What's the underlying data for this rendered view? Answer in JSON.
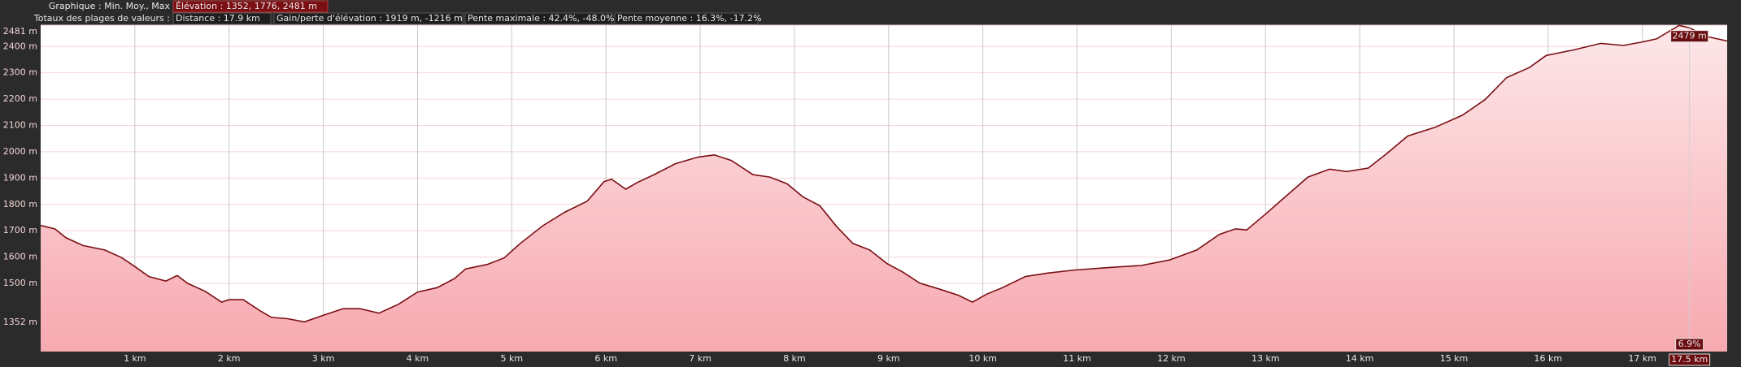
{
  "chart_data": {
    "type": "area",
    "header": {
      "chart_label": "Graphique : Min. Moy., Max",
      "elevation": "Élévation : 1352, 1776, 2481 m",
      "totals_label": "Totaux des plages de valeurs :",
      "distance": "Distance : 17.9 km",
      "gain_loss": "Gain/perte d'élévation : 1919 m, -1216 m",
      "max_slope": "Pente maximale : 42.4%, -48.0%",
      "avg_slope": "Pente moyenne : 16.3%, -17.2%"
    },
    "x": [
      0,
      0.15,
      0.27,
      0.45,
      0.68,
      0.86,
      1.0,
      1.15,
      1.33,
      1.45,
      1.56,
      1.74,
      1.92,
      2.0,
      2.15,
      2.33,
      2.45,
      2.62,
      2.8,
      3.0,
      3.21,
      3.39,
      3.59,
      3.8,
      4.0,
      4.21,
      4.39,
      4.51,
      4.74,
      4.92,
      5.09,
      5.33,
      5.56,
      5.8,
      5.98,
      6.06,
      6.21,
      6.33,
      6.51,
      6.74,
      6.98,
      7.15,
      7.33,
      7.56,
      7.74,
      7.92,
      8.09,
      8.27,
      8.45,
      8.62,
      8.8,
      8.98,
      9.15,
      9.33,
      9.56,
      9.74,
      9.89,
      10.04,
      10.21,
      10.45,
      10.68,
      10.98,
      11.33,
      11.68,
      11.98,
      12.27,
      12.51,
      12.68,
      12.8,
      12.98,
      13.21,
      13.45,
      13.68,
      13.86,
      14.09,
      14.27,
      14.51,
      14.8,
      15.09,
      15.33,
      15.56,
      15.8,
      15.98,
      16.27,
      16.56,
      16.8,
      16.98,
      17.15,
      17.39,
      17.5,
      17.68,
      17.9
    ],
    "values": [
      1720,
      1707,
      1673,
      1644,
      1627,
      1598,
      1564,
      1526,
      1509,
      1530,
      1500,
      1471,
      1429,
      1438,
      1438,
      1396,
      1371,
      1366,
      1354,
      1379,
      1404,
      1404,
      1387,
      1421,
      1467,
      1484,
      1518,
      1555,
      1572,
      1597,
      1652,
      1719,
      1770,
      1812,
      1887,
      1896,
      1858,
      1883,
      1913,
      1955,
      1980,
      1988,
      1967,
      1913,
      1904,
      1879,
      1829,
      1795,
      1715,
      1652,
      1627,
      1576,
      1543,
      1501,
      1476,
      1455,
      1429,
      1459,
      1484,
      1526,
      1539,
      1551,
      1560,
      1568,
      1589,
      1627,
      1686,
      1707,
      1703,
      1757,
      1829,
      1904,
      1934,
      1925,
      1938,
      1988,
      2060,
      2093,
      2139,
      2198,
      2282,
      2320,
      2366,
      2387,
      2412,
      2404,
      2416,
      2429,
      2480,
      2471,
      2438,
      2421
    ],
    "color": "#7a0f14",
    "fill_color": "#f7a9b0",
    "xlim": [
      0,
      17.9
    ],
    "ylim": [
      1241,
      2481
    ],
    "xticks": [
      {
        "value": 1,
        "label": "1 km"
      },
      {
        "value": 2,
        "label": "2 km"
      },
      {
        "value": 3,
        "label": "3 km"
      },
      {
        "value": 4,
        "label": "4 km"
      },
      {
        "value": 5,
        "label": "5 km"
      },
      {
        "value": 6,
        "label": "6 km"
      },
      {
        "value": 7,
        "label": "7 km"
      },
      {
        "value": 8,
        "label": "8 km"
      },
      {
        "value": 9,
        "label": "9 km"
      },
      {
        "value": 10,
        "label": "10 km"
      },
      {
        "value": 11,
        "label": "11 km"
      },
      {
        "value": 12,
        "label": "12 km"
      },
      {
        "value": 13,
        "label": "13 km"
      },
      {
        "value": 14,
        "label": "14 km"
      },
      {
        "value": 15,
        "label": "15 km"
      },
      {
        "value": 16,
        "label": "16 km"
      },
      {
        "value": 17,
        "label": "17 km"
      }
    ],
    "yticks": [
      {
        "value": 1352,
        "label": "1352 m"
      },
      {
        "value": 1500,
        "label": "1500 m"
      },
      {
        "value": 1600,
        "label": "1600 m"
      },
      {
        "value": 1700,
        "label": "1700 m"
      },
      {
        "value": 1800,
        "label": "1800 m"
      },
      {
        "value": 1900,
        "label": "1900 m"
      },
      {
        "value": 2000,
        "label": "2000 m"
      },
      {
        "value": 2100,
        "label": "2100 m"
      },
      {
        "value": 2200,
        "label": "2200 m"
      },
      {
        "value": 2300,
        "label": "2300 m"
      },
      {
        "value": 2400,
        "label": "2400 m"
      },
      {
        "value": 2481,
        "label": "2481 m"
      }
    ],
    "grid": true,
    "cursor": {
      "x": {
        "value": 17.5,
        "label": "17.5 km"
      },
      "elevation": {
        "value": 2479,
        "label": "2479 m"
      },
      "slope_label": "6.9%"
    }
  }
}
